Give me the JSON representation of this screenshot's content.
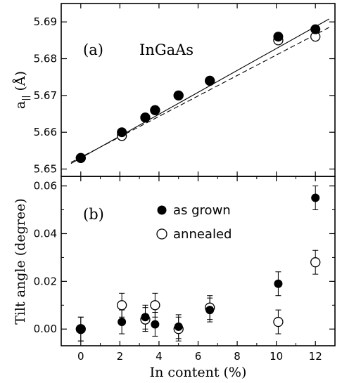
{
  "chart_data": [
    {
      "type": "scatter",
      "panel_label": "(a)",
      "annotation": "InGaAs",
      "ylabel_main": "a",
      "ylabel_sub": "||",
      "ylabel_unit": " (Å)",
      "xlim": [
        -1,
        13
      ],
      "ylim": [
        5.648,
        5.695
      ],
      "yticks": [
        5.65,
        5.66,
        5.67,
        5.68,
        5.69
      ],
      "yticklabels": [
        "5.65",
        "5.66",
        "5.67",
        "5.68",
        "5.69"
      ],
      "series": [
        {
          "marker": "filled",
          "x": [
            0,
            2.1,
            3.3,
            3.8,
            5.0,
            6.6,
            10.1,
            12.0
          ],
          "y": [
            5.653,
            5.66,
            5.664,
            5.666,
            5.67,
            5.674,
            5.686,
            5.688
          ]
        },
        {
          "marker": "open",
          "x": [
            0,
            2.1,
            3.3,
            3.8,
            5.0,
            6.6,
            10.1,
            12.0
          ],
          "y": [
            5.653,
            5.659,
            5.664,
            5.666,
            5.67,
            5.674,
            5.685,
            5.686
          ]
        }
      ],
      "fits": [
        {
          "style": "solid",
          "x": [
            -0.5,
            12.7
          ],
          "y": [
            5.6515,
            5.6908
          ]
        },
        {
          "style": "dashed",
          "x": [
            -0.5,
            12.7
          ],
          "y": [
            5.6518,
            5.6885
          ]
        }
      ]
    },
    {
      "type": "scatter",
      "panel_label": "(b)",
      "xlabel": "In content (%)",
      "ylabel": "Tilt angle (degree)",
      "xlim": [
        -1,
        13
      ],
      "ylim": [
        -0.007,
        0.064
      ],
      "xticks": [
        0,
        2,
        4,
        6,
        8,
        10,
        12
      ],
      "xticklabels": [
        "0",
        "2",
        "4",
        "6",
        "8",
        "10",
        "12"
      ],
      "yticks": [
        0.0,
        0.02,
        0.04,
        0.06
      ],
      "yticklabels": [
        "0.00",
        "0.02",
        "0.04",
        "0.06"
      ],
      "series": [
        {
          "name": "as grown",
          "marker": "filled",
          "x": [
            0,
            2.1,
            3.3,
            3.8,
            5.0,
            6.6,
            10.1,
            12.0
          ],
          "y": [
            0.0,
            0.003,
            0.005,
            0.002,
            0.001,
            0.008,
            0.019,
            0.055
          ],
          "err": [
            0.005,
            0.005,
            0.005,
            0.005,
            0.005,
            0.005,
            0.005,
            0.005
          ]
        },
        {
          "name": "annealed",
          "marker": "open",
          "x": [
            0,
            2.1,
            3.3,
            3.8,
            5.0,
            6.6,
            10.1,
            12.0
          ],
          "y": [
            0.0,
            0.01,
            0.004,
            0.01,
            0.0,
            0.009,
            0.003,
            0.028
          ],
          "err": [
            0.005,
            0.005,
            0.005,
            0.005,
            0.005,
            0.005,
            0.005,
            0.005
          ]
        }
      ]
    }
  ]
}
